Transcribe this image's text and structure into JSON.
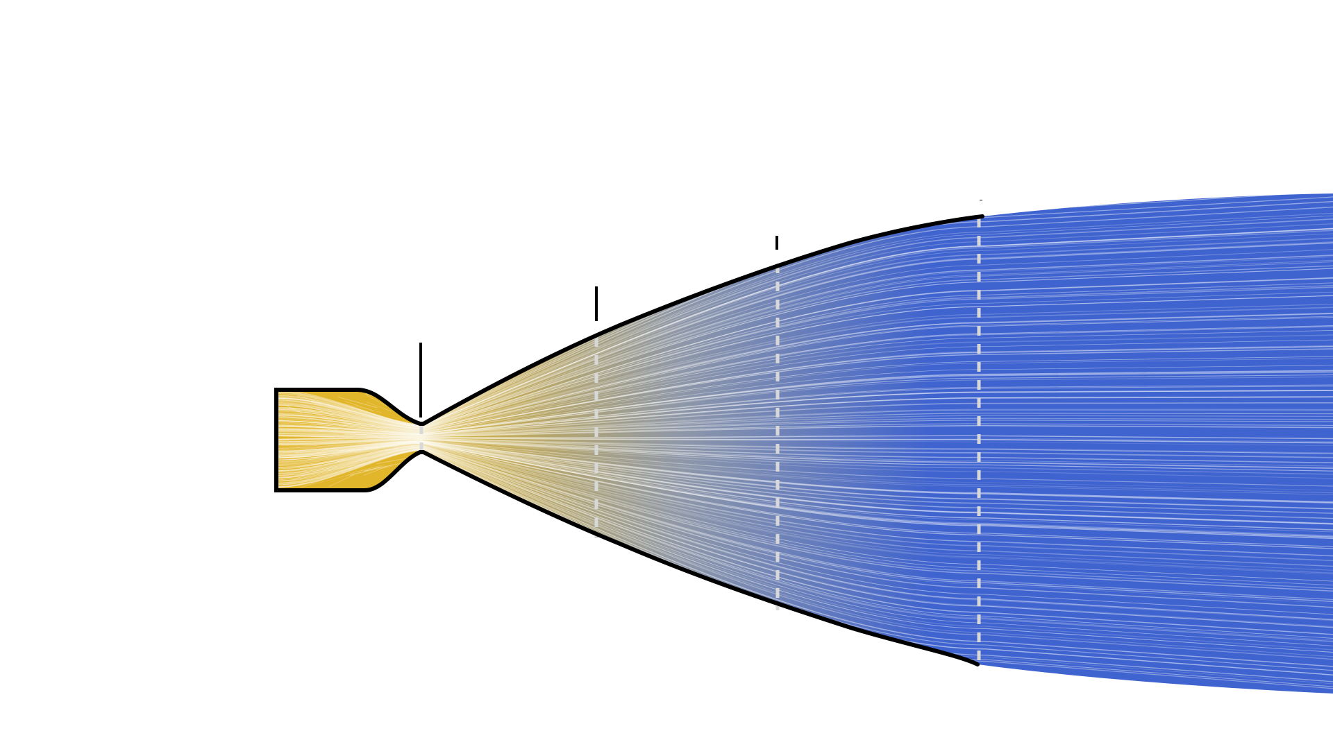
{
  "diagram": {
    "subject": "rocket-nozzle-flow",
    "colors": {
      "background": "#ffffff",
      "outline": "#000000",
      "chamber_gas": "#e2b62a",
      "mid_gas": "#8f98a8",
      "exhaust_gas": "#3f63cf",
      "streak": "#ffffff",
      "section_marker": "#d8d8d8"
    },
    "components": [
      "combustion-chamber",
      "throat",
      "diverging-section",
      "nozzle-exit",
      "exhaust-plume"
    ],
    "section_markers": 4,
    "leader_lines": 4,
    "labels": []
  }
}
